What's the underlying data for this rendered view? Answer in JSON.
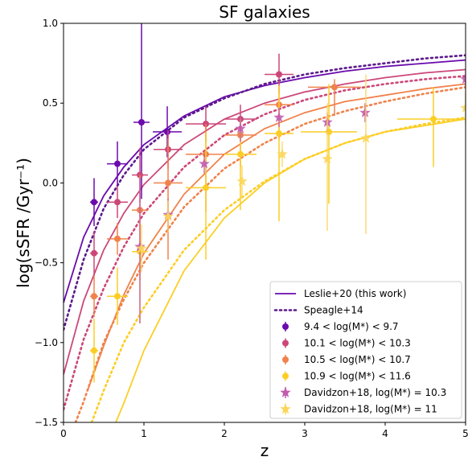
{
  "chart_data": {
    "type": "scatter",
    "title": "SF galaxies",
    "xlabel": "z",
    "ylabel": "log(sSFR /Gyr⁻¹)",
    "xlim": [
      0,
      5
    ],
    "ylim": [
      -1.5,
      1.0
    ],
    "xticks": [
      "0",
      "1",
      "2",
      "3",
      "4",
      "5"
    ],
    "yticks": [
      "−1.5",
      "−1.0",
      "−0.5",
      "0.0",
      "0.5",
      "1.0"
    ],
    "xtick_values": [
      0,
      1,
      2,
      3,
      4,
      5
    ],
    "ytick_values": [
      -1.5,
      -1.0,
      -0.5,
      0.0,
      0.5,
      1.0
    ],
    "grid": false,
    "legend_position": "lower-right",
    "colors": {
      "m1": "#6a0aad",
      "m2": "#cc4778",
      "m3": "#f0824b",
      "m4": "#fcce25",
      "speagle": "#5c1a8c",
      "davidzon_m1": "#c25cb0",
      "davidzon_m2": "#fcd65a"
    },
    "legend": [
      {
        "key": "m1_line",
        "label": "Leslie+20 (this work)",
        "marker": "line",
        "color": "#6a0aad"
      },
      {
        "key": "speagle",
        "label": "Speagle+14",
        "marker": "dotted",
        "color": "#5c1a8c"
      },
      {
        "key": "m1",
        "label": "9.4 < log(M*) < 9.7",
        "marker": "circle",
        "color": "#6a0aad"
      },
      {
        "key": "m2",
        "label": "10.1 < log(M*) < 10.3",
        "marker": "circle",
        "color": "#cc4778"
      },
      {
        "key": "m3",
        "label": "10.5 < log(M*) < 10.7",
        "marker": "circle",
        "color": "#f0824b"
      },
      {
        "key": "m4",
        "label": "10.9 < log(M*) < 11.6",
        "marker": "circle",
        "color": "#fcce25"
      },
      {
        "key": "dav1",
        "label": "Davidzon+18, log(M*) = 10.3",
        "marker": "star",
        "color": "#c25cb0"
      },
      {
        "key": "dav2",
        "label": "Davidzon+18, log(M*) = 11",
        "marker": "star",
        "color": "#fcd65a"
      }
    ],
    "fits": [
      {
        "name": "Leslie+20 (this work)",
        "color": "#6a0aad",
        "style": "solid",
        "x": [
          0,
          0.25,
          0.5,
          0.75,
          1,
          1.5,
          2,
          2.5,
          3,
          3.5,
          4,
          4.5,
          5
        ],
        "y": [
          -0.75,
          -0.34,
          -0.08,
          0.1,
          0.24,
          0.42,
          0.54,
          0.61,
          0.66,
          0.7,
          0.73,
          0.75,
          0.77
        ]
      },
      {
        "color": "#cc4778",
        "style": "solid",
        "x": [
          0,
          0.25,
          0.5,
          0.75,
          1,
          1.5,
          2,
          2.5,
          3,
          3.5,
          4,
          4.5,
          5
        ],
        "y": [
          -1.2,
          -0.74,
          -0.42,
          -0.19,
          -0.01,
          0.24,
          0.4,
          0.5,
          0.57,
          0.62,
          0.66,
          0.69,
          0.71
        ]
      },
      {
        "color": "#f0824b",
        "style": "solid",
        "x": [
          0.3,
          0.5,
          0.75,
          1,
          1.5,
          2,
          2.5,
          3,
          3.5,
          4,
          4.5,
          5
        ],
        "y": [
          -1.3,
          -1.02,
          -0.7,
          -0.44,
          -0.07,
          0.18,
          0.34,
          0.44,
          0.51,
          0.55,
          0.59,
          0.62
        ]
      },
      {
        "color": "#fcce25",
        "style": "solid",
        "x": [
          0.65,
          0.75,
          1,
          1.5,
          2,
          2.5,
          3,
          3.5,
          4,
          4.5,
          5
        ],
        "y": [
          -1.5,
          -1.38,
          -1.05,
          -0.55,
          -0.22,
          0.0,
          0.15,
          0.25,
          0.32,
          0.36,
          0.4
        ]
      },
      {
        "name": "Speagle+14",
        "color": "#5c1a8c",
        "style": "dotted",
        "x": [
          0,
          0.25,
          0.5,
          0.75,
          1,
          1.5,
          2,
          2.5,
          3,
          3.5,
          4,
          4.5,
          5
        ],
        "y": [
          -0.92,
          -0.48,
          -0.16,
          0.05,
          0.21,
          0.41,
          0.53,
          0.62,
          0.68,
          0.72,
          0.75,
          0.78,
          0.8
        ]
      },
      {
        "color": "#cc4778",
        "style": "dotted",
        "x": [
          0,
          0.25,
          0.5,
          0.75,
          1,
          1.5,
          2,
          2.5,
          3,
          3.5,
          4,
          4.5,
          5
        ],
        "y": [
          -1.42,
          -0.98,
          -0.66,
          -0.4,
          -0.19,
          0.1,
          0.3,
          0.43,
          0.52,
          0.58,
          0.62,
          0.65,
          0.67
        ]
      },
      {
        "color": "#f0824b",
        "style": "dotted",
        "x": [
          0.15,
          0.25,
          0.5,
          0.75,
          1,
          1.5,
          2,
          2.5,
          3,
          3.5,
          4,
          4.5,
          5
        ],
        "y": [
          -1.5,
          -1.37,
          -1.0,
          -0.73,
          -0.5,
          -0.15,
          0.09,
          0.25,
          0.37,
          0.45,
          0.51,
          0.56,
          0.6
        ]
      },
      {
        "color": "#fcce25",
        "style": "dotted",
        "x": [
          0.35,
          0.5,
          0.75,
          1,
          1.5,
          2,
          2.5,
          3,
          3.5,
          4,
          4.5,
          5
        ],
        "y": [
          -1.5,
          -1.3,
          -1.0,
          -0.78,
          -0.42,
          -0.17,
          0.01,
          0.15,
          0.25,
          0.32,
          0.37,
          0.41
        ]
      }
    ],
    "series": [
      {
        "name": "9.4 < log(M*) < 9.7",
        "color": "#6a0aad",
        "marker": "circle",
        "points": [
          {
            "x": 0.38,
            "y": -0.12,
            "xerr": 0.05,
            "yerr_low": 0.15,
            "yerr_high": 0.15
          },
          {
            "x": 0.67,
            "y": 0.12,
            "xerr": 0.13,
            "yerr_low": 0.14,
            "yerr_high": 0.14
          },
          {
            "x": 0.97,
            "y": 0.38,
            "xerr": 0.1,
            "yerr_low": 0.48,
            "yerr_high": 0.62
          },
          {
            "x": 1.29,
            "y": 0.32,
            "xerr": 0.18,
            "yerr_low": 0.16,
            "yerr_high": 0.16
          }
        ]
      },
      {
        "name": "10.1 < log(M*) < 10.3",
        "color": "#cc4778",
        "marker": "circle",
        "points": [
          {
            "x": 0.38,
            "y": -0.44,
            "xerr": 0.05,
            "yerr_low": 0.14,
            "yerr_high": 0.14
          },
          {
            "x": 0.67,
            "y": -0.12,
            "xerr": 0.13,
            "yerr_low": 0.1,
            "yerr_high": 0.1
          },
          {
            "x": 0.95,
            "y": 0.05,
            "xerr": 0.1,
            "yerr_low": 0.17,
            "yerr_high": 0.17
          },
          {
            "x": 1.3,
            "y": 0.21,
            "xerr": 0.18,
            "yerr_low": 0.12,
            "yerr_high": 0.12
          },
          {
            "x": 1.77,
            "y": 0.37,
            "xerr": 0.25,
            "yerr_low": 0.11,
            "yerr_high": 0.11
          },
          {
            "x": 2.2,
            "y": 0.4,
            "xerr": 0.2,
            "yerr_low": 0.09,
            "yerr_high": 0.09
          },
          {
            "x": 2.68,
            "y": 0.68,
            "xerr": 0.18,
            "yerr_low": 0.12,
            "yerr_high": 0.13
          }
        ]
      },
      {
        "name": "10.5 < log(M*) < 10.7",
        "color": "#f0824b",
        "marker": "circle",
        "points": [
          {
            "x": 0.38,
            "y": -0.71,
            "xerr": 0.05,
            "yerr_low": 0.13,
            "yerr_high": 0.13
          },
          {
            "x": 0.67,
            "y": -0.35,
            "xerr": 0.13,
            "yerr_low": 0.1,
            "yerr_high": 0.1
          },
          {
            "x": 0.95,
            "y": -0.17,
            "xerr": 0.1,
            "yerr_low": 0.44,
            "yerr_high": 0.22
          },
          {
            "x": 1.3,
            "y": 0.0,
            "xerr": 0.18,
            "yerr_low": 0.48,
            "yerr_high": 0.28
          },
          {
            "x": 1.77,
            "y": 0.18,
            "xerr": 0.25,
            "yerr_low": 0.36,
            "yerr_high": 0.19
          },
          {
            "x": 2.2,
            "y": 0.3,
            "xerr": 0.2,
            "yerr_low": 0.2,
            "yerr_high": 0.1
          },
          {
            "x": 2.68,
            "y": 0.49,
            "xerr": 0.18,
            "yerr_low": 0.22,
            "yerr_high": 0.1
          },
          {
            "x": 3.37,
            "y": 0.6,
            "xerr": 0.33,
            "yerr_low": 0.18,
            "yerr_high": 0.05
          }
        ]
      },
      {
        "name": "10.9 < log(M*) < 11.6",
        "color": "#fcce25",
        "marker": "circle",
        "points": [
          {
            "x": 0.38,
            "y": -1.05,
            "xerr": 0.05,
            "yerr_low": 0.2,
            "yerr_high": 0.2
          },
          {
            "x": 0.67,
            "y": -0.71,
            "xerr": 0.13,
            "yerr_low": 0.18,
            "yerr_high": 0.18
          },
          {
            "x": 0.95,
            "y": -0.43,
            "xerr": 0.1,
            "yerr_low": 0.45,
            "yerr_high": 0.2
          },
          {
            "x": 1.77,
            "y": -0.03,
            "xerr": 0.25,
            "yerr_low": 0.45,
            "yerr_high": 0.35
          },
          {
            "x": 2.2,
            "y": 0.18,
            "xerr": 0.2,
            "yerr_low": 0.35,
            "yerr_high": 0.22
          },
          {
            "x": 2.68,
            "y": 0.31,
            "xerr": 0.18,
            "yerr_low": 0.55,
            "yerr_high": 0.3
          },
          {
            "x": 3.3,
            "y": 0.32,
            "xerr": 0.35,
            "yerr_low": 0.45,
            "yerr_high": 0.3
          },
          {
            "x": 4.6,
            "y": 0.4,
            "xerr": 0.45,
            "yerr_low": 0.3,
            "yerr_high": 0.2
          }
        ]
      },
      {
        "name": "Davidzon+18, log(M*) = 10.3",
        "color": "#c25cb0",
        "marker": "star",
        "points": [
          {
            "x": 0.95,
            "y": -0.4,
            "yerr_low": 0.48,
            "yerr_high": 0.43
          },
          {
            "x": 1.3,
            "y": -0.2,
            "yerr_low": 0.1,
            "yerr_high": 0.1
          },
          {
            "x": 1.75,
            "y": 0.12,
            "yerr_low": 0.06,
            "yerr_high": 0.06
          },
          {
            "x": 2.2,
            "y": 0.34,
            "yerr_low": 0.08,
            "yerr_high": 0.08
          },
          {
            "x": 2.68,
            "y": 0.41,
            "yerr_low": 0.06,
            "yerr_high": 0.06
          },
          {
            "x": 3.28,
            "y": 0.38,
            "yerr_low": 0.06,
            "yerr_high": 0.06
          },
          {
            "x": 3.75,
            "y": 0.44,
            "yerr_low": 0.06,
            "yerr_high": 0.06
          },
          {
            "x": 5.0,
            "y": 0.65,
            "yerr_low": 0.05,
            "yerr_high": 0.05
          }
        ]
      },
      {
        "name": "Davidzon+18, log(M*) = 11",
        "color": "#fcd65a",
        "marker": "star",
        "points": [
          {
            "x": 0.97,
            "y": -0.41,
            "yerr_low": 0.15,
            "yerr_high": 0.15
          },
          {
            "x": 1.3,
            "y": -0.21,
            "yerr_low": 0.1,
            "yerr_high": 0.1
          },
          {
            "x": 2.22,
            "y": 0.01,
            "yerr_low": 0.1,
            "yerr_high": 0.1
          },
          {
            "x": 2.72,
            "y": 0.18,
            "yerr_low": 0.08,
            "yerr_high": 0.08
          },
          {
            "x": 3.28,
            "y": 0.15,
            "yerr_low": 0.45,
            "yerr_high": 0.35
          },
          {
            "x": 3.76,
            "y": 0.28,
            "yerr_low": 0.6,
            "yerr_high": 0.4
          },
          {
            "x": 5.0,
            "y": 0.47,
            "yerr_low": 0.1,
            "yerr_high": 0.1
          }
        ]
      }
    ]
  }
}
